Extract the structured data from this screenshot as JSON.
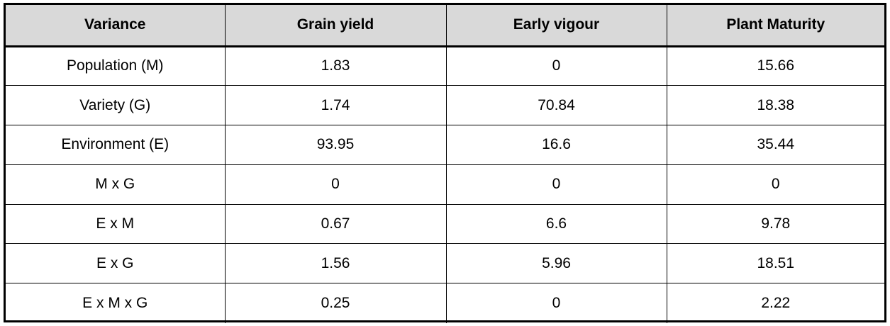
{
  "table": {
    "headers": [
      "Variance",
      "Grain yield",
      "Early vigour",
      "Plant Maturity"
    ],
    "rows": [
      [
        "Population (M)",
        "1.83",
        "0",
        "15.66"
      ],
      [
        "Variety (G)",
        "1.74",
        "70.84",
        "18.38"
      ],
      [
        "Environment (E)",
        "93.95",
        "16.6",
        "35.44"
      ],
      [
        "M x G",
        "0",
        "0",
        "0"
      ],
      [
        "E x M",
        "0.67",
        "6.6",
        "9.78"
      ],
      [
        "E x G",
        "1.56",
        "5.96",
        "18.51"
      ],
      [
        "E x M x G",
        "0.25",
        "0",
        "2.22"
      ]
    ]
  }
}
